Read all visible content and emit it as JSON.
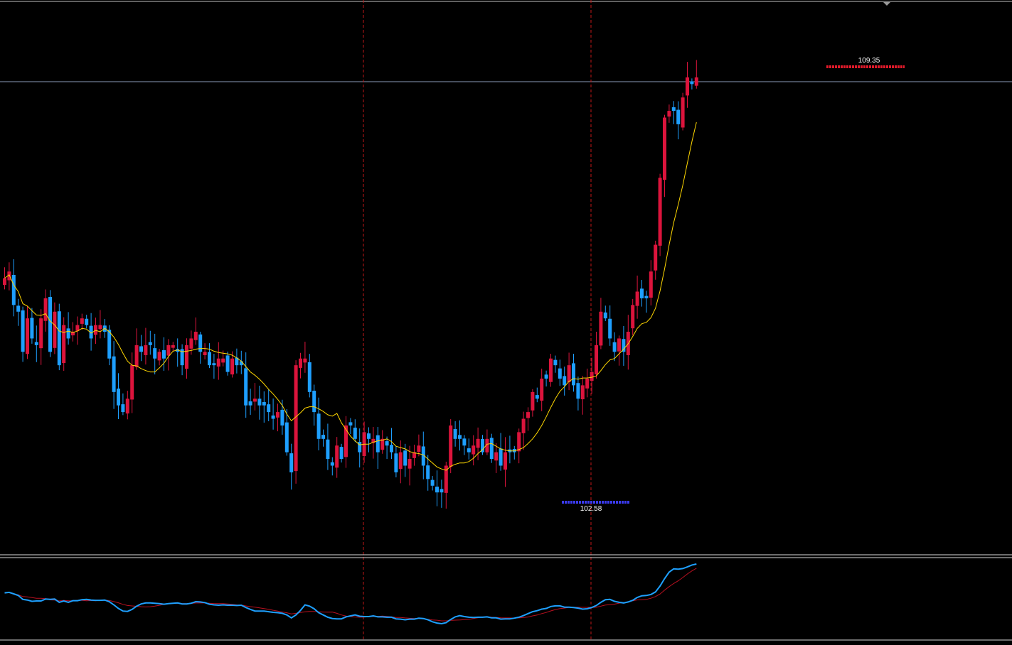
{
  "chart_data": [
    {
      "type": "candlestick",
      "panel": "main-price",
      "up_color": "#dc143c",
      "down_color": "#1e9fff",
      "ma_color": "#ffd700",
      "horizontal_line_color": "#8a9ab8",
      "period_separator_color": "#c01818",
      "high_marker": {
        "value": "109.35",
        "color": "#e01a2a"
      },
      "low_marker": {
        "value": "102.58",
        "color": "#3a3aee"
      },
      "ylim": [
        101.8,
        109.95
      ],
      "closes": [
        105.9,
        106.0,
        105.5,
        105.4,
        104.8,
        105.3,
        105.0,
        104.9,
        105.3,
        105.6,
        104.8,
        105.4,
        104.6,
        105.2,
        105.0,
        105.1,
        105.2,
        105.3,
        105.2,
        105.0,
        105.2,
        105.2,
        105.1,
        104.7,
        104.2,
        104.0,
        103.9,
        104.1,
        104.6,
        104.9,
        104.8,
        104.9,
        104.9,
        104.7,
        104.8,
        104.7,
        104.9,
        104.9,
        104.8,
        104.6,
        104.9,
        105.0,
        105.1,
        104.8,
        104.8,
        104.6,
        104.6,
        104.7,
        104.7,
        104.5,
        104.7,
        104.6,
        104.6,
        104.0,
        104.0,
        104.1,
        104.0,
        104.0,
        103.9,
        103.8,
        103.9,
        103.7,
        103.3,
        103.0,
        104.6,
        104.7,
        104.7,
        104.2,
        103.9,
        103.5,
        103.5,
        103.2,
        103.1,
        103.4,
        103.2,
        103.7,
        103.7,
        103.5,
        103.3,
        103.6,
        103.5,
        103.5,
        103.3,
        103.5,
        103.4,
        103.3,
        103.0,
        103.3,
        103.1,
        103.2,
        103.3,
        103.4,
        103.1,
        102.9,
        102.8,
        102.7,
        102.7,
        103.1,
        103.7,
        103.5,
        103.5,
        103.4,
        103.3,
        103.4,
        103.5,
        103.3,
        103.5,
        103.2,
        103.3,
        103.1,
        103.3,
        103.3,
        103.3,
        103.6,
        103.8,
        103.9,
        104.2,
        104.1,
        104.4,
        104.4,
        104.7,
        104.6,
        104.4,
        104.3,
        104.6,
        104.3,
        104.1,
        104.3,
        104.4,
        104.5,
        104.9,
        105.4,
        105.3,
        105.0,
        104.8,
        105.0,
        104.8,
        105.1,
        105.5,
        105.7,
        105.6,
        105.6,
        106.0,
        106.4,
        107.4,
        108.3,
        108.4,
        108.4,
        108.2,
        108.6,
        108.9,
        108.8,
        108.9
      ]
    },
    {
      "type": "line",
      "panel": "oscillator",
      "series": [
        {
          "name": "",
          "color": "#1ea0ff"
        },
        {
          "name": "",
          "color": "#b81020"
        }
      ]
    }
  ]
}
